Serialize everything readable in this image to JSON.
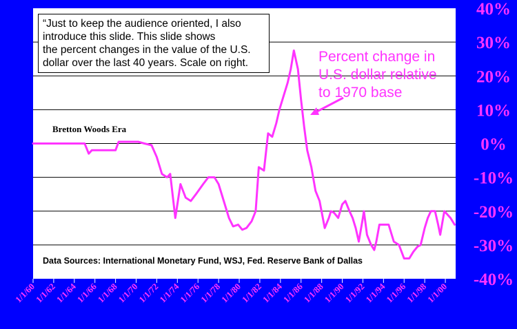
{
  "slide": {
    "callout_lines": [
      "“Just to keep the audience oriented, I also",
      "introduce this slide. This slide shows",
      "the percent changes in the value of the U.S.",
      "dollar over the last 40 years. Scale on right."
    ],
    "era_label": "Bretton Woods Era",
    "sources": "Data Sources: International Monetary Fund, WSJ, Fed. Reserve Bank of Dallas",
    "annotation_lines": [
      "Percent change in",
      "U.S. dollar relative",
      "to 1970 base"
    ]
  },
  "colors": {
    "background": "#0000ff",
    "plot_area": "#ffffff",
    "line": "#ff33ff",
    "axis_labels": "#ff33ff",
    "grid": "#000000"
  },
  "chart_data": {
    "type": "line",
    "y_axis_side": "right",
    "ylim": [
      -40,
      40
    ],
    "xlim": [
      1960,
      2001
    ],
    "y_ticks": [
      40,
      30,
      20,
      10,
      0,
      -10,
      -20,
      -30,
      -40
    ],
    "y_tick_labels": [
      "40%",
      "30%",
      "20%",
      "10%",
      "0%",
      "-10%",
      "-20%",
      "-30%",
      "-40%"
    ],
    "x_ticks": [
      "1/1/60",
      "1/1/62",
      "1/1/64",
      "1/1/66",
      "1/1/68",
      "1/1/70",
      "1/1/72",
      "1/1/74",
      "1/1/76",
      "1/1/78",
      "1/1/80",
      "1/1/82",
      "1/1/84",
      "1/1/86",
      "1/1/88",
      "1/1/90",
      "1/1/92",
      "1/1/94",
      "1/1/96",
      "1/1/98",
      "1/1/00"
    ],
    "grid": true,
    "series": [
      {
        "points": [
          [
            1960.0,
            0
          ],
          [
            1963.5,
            0
          ],
          [
            1965.0,
            0
          ],
          [
            1965.4,
            -3
          ],
          [
            1965.7,
            -2
          ],
          [
            1966.5,
            -2
          ],
          [
            1968.0,
            -2
          ],
          [
            1968.3,
            0.5
          ],
          [
            1969.5,
            0.5
          ],
          [
            1970.2,
            0.5
          ],
          [
            1970.8,
            0
          ],
          [
            1971.5,
            -0.5
          ],
          [
            1972.0,
            -4
          ],
          [
            1972.5,
            -9
          ],
          [
            1973.0,
            -10
          ],
          [
            1973.3,
            -9
          ],
          [
            1973.8,
            -22
          ],
          [
            1974.3,
            -12
          ],
          [
            1974.8,
            -16
          ],
          [
            1975.3,
            -17
          ],
          [
            1975.8,
            -15
          ],
          [
            1976.5,
            -12
          ],
          [
            1977.0,
            -10
          ],
          [
            1977.6,
            -10
          ],
          [
            1978.0,
            -12
          ],
          [
            1978.5,
            -17
          ],
          [
            1979.0,
            -22
          ],
          [
            1979.4,
            -24.5
          ],
          [
            1979.9,
            -24
          ],
          [
            1980.3,
            -25.5
          ],
          [
            1980.7,
            -25
          ],
          [
            1981.2,
            -23
          ],
          [
            1981.6,
            -20
          ],
          [
            1981.9,
            -7
          ],
          [
            1982.4,
            -8
          ],
          [
            1982.8,
            3
          ],
          [
            1983.2,
            2
          ],
          [
            1983.6,
            6
          ],
          [
            1983.9,
            10
          ],
          [
            1984.3,
            14
          ],
          [
            1984.7,
            18
          ],
          [
            1985.0,
            22
          ],
          [
            1985.3,
            27.5
          ],
          [
            1985.7,
            22
          ],
          [
            1986.0,
            13
          ],
          [
            1986.3,
            5
          ],
          [
            1986.6,
            -2
          ],
          [
            1987.0,
            -7
          ],
          [
            1987.4,
            -14
          ],
          [
            1987.8,
            -17
          ],
          [
            1988.3,
            -25
          ],
          [
            1988.7,
            -22
          ],
          [
            1988.9,
            -20
          ],
          [
            1989.2,
            -20.5
          ],
          [
            1989.6,
            -22
          ],
          [
            1990.0,
            -18
          ],
          [
            1990.3,
            -17
          ],
          [
            1990.7,
            -20
          ],
          [
            1991.0,
            -22
          ],
          [
            1991.3,
            -25
          ],
          [
            1991.6,
            -29
          ],
          [
            1992.0,
            -22
          ],
          [
            1992.1,
            -20
          ],
          [
            1992.4,
            -27
          ],
          [
            1992.8,
            -30
          ],
          [
            1993.1,
            -31.5
          ],
          [
            1993.3,
            -29
          ],
          [
            1993.6,
            -24
          ],
          [
            1994.0,
            -24
          ],
          [
            1994.5,
            -24
          ],
          [
            1995.0,
            -29
          ],
          [
            1995.5,
            -30
          ],
          [
            1996.0,
            -34
          ],
          [
            1996.5,
            -34
          ],
          [
            1996.9,
            -32
          ],
          [
            1997.3,
            -30.5
          ],
          [
            1997.6,
            -30
          ],
          [
            1998.0,
            -25
          ],
          [
            1998.3,
            -22
          ],
          [
            1998.6,
            -20
          ],
          [
            1999.0,
            -20
          ],
          [
            1999.3,
            -24
          ],
          [
            1999.5,
            -27
          ],
          [
            1999.9,
            -20
          ],
          [
            2000.5,
            -22
          ],
          [
            2000.9,
            -24
          ]
        ]
      }
    ]
  }
}
